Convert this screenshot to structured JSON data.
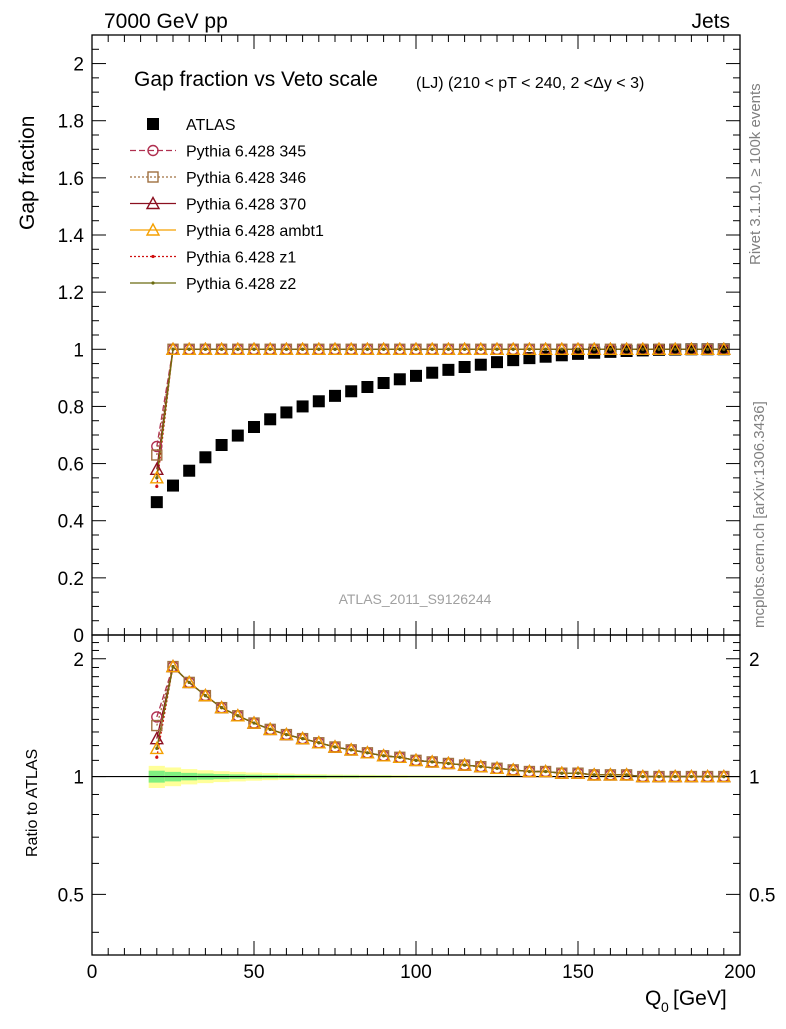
{
  "header": {
    "left": "7000 GeV pp",
    "right": "Jets"
  },
  "side_labels": {
    "rivet": "Rivet 3.1.10, ≥ 100k events",
    "mcplots": "mcplots.cern.ch [arXiv:1306.3436]"
  },
  "analysis_id": "ATLAS_2011_S9126244",
  "chart_data": [
    {
      "type": "scatter",
      "title": "Gap fraction vs Veto scale",
      "subtitle": "(LJ) (210 < pT < 240, 2 <Δy < 3)",
      "xlabel": "Q",
      "xlabel_sub": "0",
      "xlabel_unit": "[GeV]",
      "ylabel": "Gap fraction",
      "xlim": [
        0,
        200
      ],
      "ylim": [
        0,
        2.1
      ],
      "x_ticks": [
        "0",
        "50",
        "100",
        "150",
        "200"
      ],
      "y_ticks": [
        "0",
        "0.2",
        "0.4",
        "0.6",
        "0.8",
        "1",
        "1.2",
        "1.4",
        "1.6",
        "1.8",
        "2"
      ],
      "legend_position": "top-left",
      "x": [
        20,
        25,
        30,
        35,
        40,
        45,
        50,
        55,
        60,
        65,
        70,
        75,
        80,
        85,
        90,
        95,
        100,
        105,
        110,
        115,
        120,
        125,
        130,
        135,
        140,
        145,
        150,
        155,
        160,
        165,
        170,
        175,
        180,
        185,
        190,
        195
      ],
      "series": [
        {
          "name": "ATLAS",
          "color": "#000000",
          "marker": "filled-square",
          "line": "none",
          "values": [
            0.465,
            0.523,
            0.575,
            0.622,
            0.665,
            0.698,
            0.728,
            0.755,
            0.779,
            0.8,
            0.818,
            0.837,
            0.853,
            0.868,
            0.882,
            0.895,
            0.907,
            0.918,
            0.928,
            0.938,
            0.946,
            0.955,
            0.962,
            0.969,
            0.974,
            0.979,
            0.984,
            0.988,
            0.991,
            0.994,
            0.996,
            0.998,
            0.999,
            1.0,
            1.0,
            1.0
          ]
        },
        {
          "name": "Pythia 6.428 345",
          "color": "#b03050",
          "marker": "open-circle",
          "line": "dashed",
          "values": [
            0.66,
            1.0,
            1.0,
            1.0,
            1.0,
            1.0,
            1.0,
            1.0,
            1.0,
            1.0,
            1.0,
            1.0,
            1.0,
            1.0,
            1.0,
            1.0,
            1.0,
            1.0,
            1.0,
            1.0,
            1.0,
            1.0,
            1.0,
            1.0,
            1.0,
            1.0,
            1.0,
            1.0,
            1.0,
            1.0,
            1.0,
            1.0,
            1.0,
            1.0,
            1.0,
            1.0
          ]
        },
        {
          "name": "Pythia 6.428 346",
          "color": "#a07040",
          "marker": "open-square",
          "line": "dotted",
          "values": [
            0.63,
            1.0,
            1.0,
            1.0,
            1.0,
            1.0,
            1.0,
            1.0,
            1.0,
            1.0,
            1.0,
            1.0,
            1.0,
            1.0,
            1.0,
            1.0,
            1.0,
            1.0,
            1.0,
            1.0,
            1.0,
            1.0,
            1.0,
            1.0,
            1.0,
            1.0,
            1.0,
            1.0,
            1.0,
            1.0,
            1.0,
            1.0,
            1.0,
            1.0,
            1.0,
            1.0
          ]
        },
        {
          "name": "Pythia 6.428 370",
          "color": "#8b1020",
          "marker": "open-triangle",
          "line": "solid",
          "values": [
            0.58,
            1.0,
            1.0,
            1.0,
            1.0,
            1.0,
            1.0,
            1.0,
            1.0,
            1.0,
            1.0,
            1.0,
            1.0,
            1.0,
            1.0,
            1.0,
            1.0,
            1.0,
            1.0,
            1.0,
            1.0,
            1.0,
            1.0,
            1.0,
            1.0,
            1.0,
            1.0,
            1.0,
            1.0,
            1.0,
            1.0,
            1.0,
            1.0,
            1.0,
            1.0,
            1.0
          ]
        },
        {
          "name": "Pythia 6.428 ambt1",
          "color": "#f5a000",
          "marker": "open-triangle",
          "line": "solid",
          "values": [
            0.55,
            1.0,
            1.0,
            1.0,
            1.0,
            1.0,
            1.0,
            1.0,
            1.0,
            1.0,
            1.0,
            1.0,
            1.0,
            1.0,
            1.0,
            1.0,
            1.0,
            1.0,
            1.0,
            1.0,
            1.0,
            1.0,
            1.0,
            1.0,
            1.0,
            1.0,
            1.0,
            1.0,
            1.0,
            1.0,
            1.0,
            1.0,
            1.0,
            1.0,
            1.0,
            1.0
          ]
        },
        {
          "name": "Pythia 6.428 z1",
          "color": "#d01010",
          "marker": "dot",
          "line": "dotted",
          "values": [
            0.52,
            1.0,
            1.0,
            1.0,
            1.0,
            1.0,
            1.0,
            1.0,
            1.0,
            1.0,
            1.0,
            1.0,
            1.0,
            1.0,
            1.0,
            1.0,
            1.0,
            1.0,
            1.0,
            1.0,
            1.0,
            1.0,
            1.0,
            1.0,
            1.0,
            1.0,
            1.0,
            1.0,
            1.0,
            1.0,
            1.0,
            1.0,
            1.0,
            1.0,
            1.0,
            1.0
          ]
        },
        {
          "name": "Pythia 6.428 z2",
          "color": "#6b6b10",
          "marker": "dot",
          "line": "solid",
          "values": [
            0.55,
            1.0,
            1.0,
            1.0,
            1.0,
            1.0,
            1.0,
            1.0,
            1.0,
            1.0,
            1.0,
            1.0,
            1.0,
            1.0,
            1.0,
            1.0,
            1.0,
            1.0,
            1.0,
            1.0,
            1.0,
            1.0,
            1.0,
            1.0,
            1.0,
            1.0,
            1.0,
            1.0,
            1.0,
            1.0,
            1.0,
            1.0,
            1.0,
            1.0,
            1.0,
            1.0
          ]
        }
      ]
    },
    {
      "type": "line",
      "ylabel": "Ratio to ATLAS",
      "xlim": [
        0,
        200
      ],
      "ylim": [
        0.35,
        2.3
      ],
      "y_ticks": [
        "0.5",
        "1",
        "2"
      ],
      "reference_line": 1,
      "x": [
        20,
        25,
        30,
        35,
        40,
        45,
        50,
        55,
        60,
        65,
        70,
        75,
        80,
        85,
        90,
        95,
        100,
        105,
        110,
        115,
        120,
        125,
        130,
        135,
        140,
        145,
        150,
        155,
        160,
        165,
        170,
        175,
        180,
        185,
        190,
        195
      ],
      "band_outer_color": "#ffff99",
      "band_inner_color": "#80f080",
      "band_outer": [
        0.065,
        0.055,
        0.045,
        0.038,
        0.032,
        0.028,
        0.024,
        0.021,
        0.018,
        0.016,
        0.014,
        0.012,
        0.011,
        0.01,
        0.009,
        0.008,
        0.007,
        0.007,
        0.006,
        0.006,
        0.005,
        0.005,
        0.004,
        0.004,
        0.004,
        0.003,
        0.003,
        0.003,
        0.003,
        0.002,
        0.002,
        0.002,
        0.002,
        0.002,
        0.002,
        0.002
      ],
      "band_inner": [
        0.035,
        0.028,
        0.022,
        0.018,
        0.015,
        0.013,
        0.011,
        0.01,
        0.009,
        0.008,
        0.007,
        0.006,
        0.006,
        0.005,
        0.005,
        0.004,
        0.004,
        0.004,
        0.003,
        0.003,
        0.003,
        0.003,
        0.002,
        0.002,
        0.002,
        0.002,
        0.002,
        0.002,
        0.001,
        0.001,
        0.001,
        0.001,
        0.001,
        0.001,
        0.001,
        0.001
      ],
      "series": [
        {
          "name": "Pythia 6.428 345",
          "values": [
            1.42,
            1.91,
            1.74,
            1.61,
            1.5,
            1.43,
            1.37,
            1.32,
            1.28,
            1.25,
            1.22,
            1.19,
            1.17,
            1.15,
            1.13,
            1.12,
            1.1,
            1.09,
            1.08,
            1.07,
            1.06,
            1.05,
            1.04,
            1.03,
            1.03,
            1.02,
            1.02,
            1.01,
            1.01,
            1.01,
            1.0,
            1.0,
            1.0,
            1.0,
            1.0,
            1.0
          ]
        },
        {
          "name": "Pythia 6.428 346",
          "values": [
            1.35,
            1.91,
            1.74,
            1.61,
            1.5,
            1.43,
            1.37,
            1.32,
            1.28,
            1.25,
            1.22,
            1.19,
            1.17,
            1.15,
            1.13,
            1.12,
            1.1,
            1.09,
            1.08,
            1.07,
            1.06,
            1.05,
            1.04,
            1.03,
            1.03,
            1.02,
            1.02,
            1.01,
            1.01,
            1.01,
            1.0,
            1.0,
            1.0,
            1.0,
            1.0,
            1.0
          ]
        },
        {
          "name": "Pythia 6.428 370",
          "values": [
            1.25,
            1.91,
            1.74,
            1.61,
            1.5,
            1.43,
            1.37,
            1.32,
            1.28,
            1.25,
            1.22,
            1.19,
            1.17,
            1.15,
            1.13,
            1.12,
            1.1,
            1.09,
            1.08,
            1.07,
            1.06,
            1.05,
            1.04,
            1.03,
            1.03,
            1.02,
            1.02,
            1.01,
            1.01,
            1.01,
            1.0,
            1.0,
            1.0,
            1.0,
            1.0,
            1.0
          ]
        },
        {
          "name": "Pythia 6.428 ambt1",
          "values": [
            1.18,
            1.91,
            1.74,
            1.61,
            1.5,
            1.43,
            1.37,
            1.32,
            1.28,
            1.25,
            1.22,
            1.19,
            1.17,
            1.15,
            1.13,
            1.12,
            1.1,
            1.09,
            1.08,
            1.07,
            1.06,
            1.05,
            1.04,
            1.03,
            1.03,
            1.02,
            1.02,
            1.01,
            1.01,
            1.01,
            1.0,
            1.0,
            1.0,
            1.0,
            1.0,
            1.0
          ]
        },
        {
          "name": "Pythia 6.428 z1",
          "values": [
            1.12,
            1.91,
            1.74,
            1.61,
            1.5,
            1.43,
            1.37,
            1.32,
            1.28,
            1.25,
            1.22,
            1.19,
            1.17,
            1.15,
            1.13,
            1.12,
            1.1,
            1.09,
            1.08,
            1.07,
            1.06,
            1.05,
            1.04,
            1.03,
            1.03,
            1.02,
            1.02,
            1.01,
            1.01,
            1.01,
            1.0,
            1.0,
            1.0,
            1.0,
            1.0,
            1.0
          ]
        },
        {
          "name": "Pythia 6.428 z2",
          "values": [
            1.18,
            1.91,
            1.74,
            1.61,
            1.5,
            1.43,
            1.37,
            1.32,
            1.28,
            1.25,
            1.22,
            1.19,
            1.17,
            1.15,
            1.13,
            1.12,
            1.1,
            1.09,
            1.08,
            1.07,
            1.06,
            1.05,
            1.04,
            1.03,
            1.03,
            1.02,
            1.02,
            1.01,
            1.01,
            1.01,
            1.0,
            1.0,
            1.0,
            1.0,
            1.0,
            1.0
          ]
        }
      ]
    }
  ]
}
